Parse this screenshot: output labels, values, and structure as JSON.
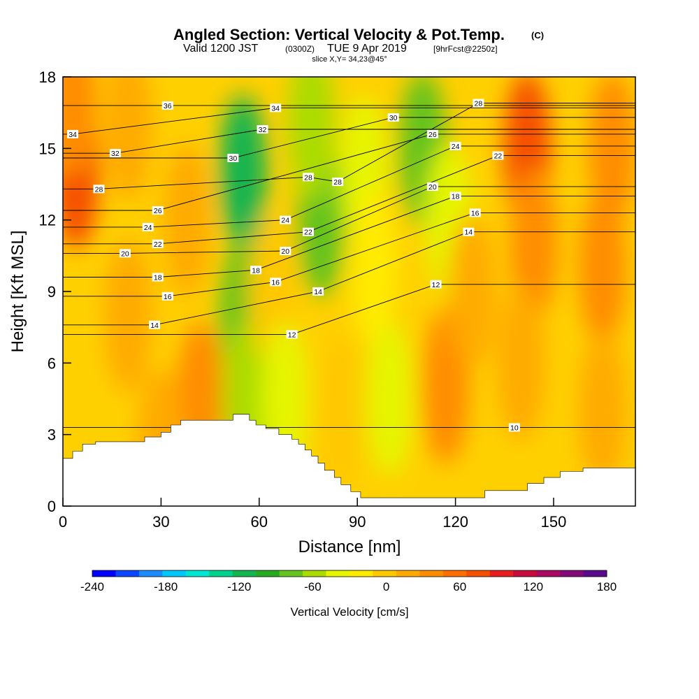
{
  "chart_data": {
    "type": "heatmap",
    "title_main": "Angled Section: Vertical Velocity & Pot.Temp.",
    "title_unit": "(C)",
    "subtitle_a": "Valid 1200 JST",
    "subtitle_b": "(0300Z)",
    "subtitle_c": "TUE 9 Apr 2019",
    "subtitle_d": "[9hrFcst@2250z]",
    "slice": "slice X,Y= 34,23@45°",
    "xlabel": "Distance [nm]",
    "ylabel": "Height [Kft MSL]",
    "xlim": [
      0,
      175
    ],
    "ylim": [
      0,
      18
    ],
    "x_ticks": [
      "0",
      "30",
      "60",
      "90",
      "120",
      "150"
    ],
    "x_tick_values": [
      0,
      30,
      60,
      90,
      120,
      150
    ],
    "y_ticks": [
      "0",
      "3",
      "6",
      "9",
      "12",
      "15",
      "18"
    ],
    "y_tick_values": [
      0,
      3,
      6,
      9,
      12,
      15,
      18
    ],
    "colorbar": {
      "label": "Vertical Velocity [cm/s]",
      "range": [
        -240,
        180
      ],
      "tick_labels": [
        "-240",
        "-180",
        "-120",
        "-60",
        "0",
        "60",
        "120",
        "180"
      ],
      "tick_values": [
        -240,
        -180,
        -120,
        -60,
        0,
        60,
        120,
        180
      ],
      "colors": [
        "#0000ff",
        "#0a46ff",
        "#1a8cff",
        "#00c8ff",
        "#00e6d2",
        "#00d28c",
        "#14b450",
        "#28aa1e",
        "#64c31e",
        "#aadc00",
        "#e6f500",
        "#ffeb00",
        "#ffc800",
        "#ffaa00",
        "#ff8c00",
        "#ff6e00",
        "#f55000",
        "#e61e1e",
        "#c80a3c",
        "#aa0a64",
        "#820a78",
        "#5a0a8c"
      ]
    },
    "terrain_profile": {
      "x": [
        0,
        3,
        3,
        6,
        6,
        10,
        10,
        25,
        25,
        30,
        30,
        33,
        33,
        36,
        36,
        52,
        52,
        57,
        57,
        59,
        59,
        62,
        62,
        66,
        66,
        70,
        70,
        72,
        72,
        74,
        74,
        76,
        76,
        78,
        78,
        80,
        80,
        83,
        83,
        85,
        85,
        88,
        88,
        91,
        91,
        129,
        129,
        142,
        142,
        147,
        147,
        152,
        152,
        159,
        159,
        175
      ],
      "height": [
        2,
        2,
        2.3,
        2.3,
        2.6,
        2.6,
        2.7,
        2.7,
        2.9,
        2.9,
        3.1,
        3.1,
        3.4,
        3.4,
        3.6,
        3.6,
        3.85,
        3.85,
        3.6,
        3.6,
        3.4,
        3.4,
        3.25,
        3.25,
        3.0,
        3.0,
        2.8,
        2.8,
        2.6,
        2.6,
        2.35,
        2.35,
        2.1,
        2.1,
        1.8,
        1.8,
        1.5,
        1.5,
        1.2,
        1.2,
        0.9,
        0.9,
        0.6,
        0.6,
        0.35,
        0.35,
        0.65,
        0.65,
        0.95,
        0.95,
        1.2,
        1.2,
        1.45,
        1.45,
        1.6,
        1.6
      ]
    },
    "velocity_field": [
      {
        "x": 4,
        "z": 14,
        "w": 70
      },
      {
        "x": 3,
        "z": 17,
        "w": 45
      },
      {
        "x": 20,
        "z": 8,
        "w": 25
      },
      {
        "x": 38,
        "z": 12,
        "w": 10
      },
      {
        "x": 42,
        "z": 4.5,
        "w": 35
      },
      {
        "x": 55,
        "z": 14,
        "w": -110
      },
      {
        "x": 55,
        "z": 8,
        "w": -70
      },
      {
        "x": 56,
        "z": 4.5,
        "w": -50
      },
      {
        "x": 64,
        "z": 9,
        "w": 5
      },
      {
        "x": 68,
        "z": 4.5,
        "w": -40
      },
      {
        "x": 79,
        "z": 12,
        "w": -70
      },
      {
        "x": 76,
        "z": 16,
        "w": -50
      },
      {
        "x": 92,
        "z": 14,
        "w": -45
      },
      {
        "x": 95,
        "z": 10,
        "w": -30
      },
      {
        "x": 100,
        "z": 4.5,
        "w": -45
      },
      {
        "x": 110,
        "z": 15,
        "w": -75
      },
      {
        "x": 118,
        "z": 12,
        "w": -40
      },
      {
        "x": 117,
        "z": 5,
        "w": 35
      },
      {
        "x": 85,
        "z": 4,
        "w": -8
      },
      {
        "x": 125,
        "z": 9,
        "w": 10
      },
      {
        "x": 142,
        "z": 15,
        "w": 80
      },
      {
        "x": 144,
        "z": 11,
        "w": 45
      },
      {
        "x": 140,
        "z": 6,
        "w": 20
      },
      {
        "x": 165,
        "z": 10,
        "w": 30
      },
      {
        "x": 165,
        "z": 4,
        "w": 15
      },
      {
        "x": 168,
        "z": 15,
        "w": 30
      },
      {
        "x": 20,
        "z": 16,
        "w": 20
      },
      {
        "x": 30,
        "z": 2.5,
        "w": 15
      }
    ],
    "potential_temperature_labels": [
      {
        "text": "36",
        "x": 32,
        "z": 16.8
      },
      {
        "text": "34",
        "x": 3,
        "z": 15.6
      },
      {
        "text": "32",
        "x": 16,
        "z": 14.8
      },
      {
        "text": "28",
        "x": 11,
        "z": 13.3
      },
      {
        "text": "26",
        "x": 29,
        "z": 12.4
      },
      {
        "text": "24",
        "x": 26,
        "z": 11.7
      },
      {
        "text": "22",
        "x": 29,
        "z": 11.0
      },
      {
        "text": "20",
        "x": 19,
        "z": 10.6
      },
      {
        "text": "18",
        "x": 29,
        "z": 9.6
      },
      {
        "text": "16",
        "x": 32,
        "z": 8.8
      },
      {
        "text": "14",
        "x": 28,
        "z": 7.6
      },
      {
        "text": "34",
        "x": 65,
        "z": 16.7
      },
      {
        "text": "32",
        "x": 61,
        "z": 15.8
      },
      {
        "text": "30",
        "x": 52,
        "z": 14.6
      },
      {
        "text": "28",
        "x": 75,
        "z": 13.8
      },
      {
        "text": "28",
        "x": 84,
        "z": 13.6
      },
      {
        "text": "24",
        "x": 68,
        "z": 12.0
      },
      {
        "text": "22",
        "x": 75,
        "z": 11.5
      },
      {
        "text": "20",
        "x": 68,
        "z": 10.7
      },
      {
        "text": "18",
        "x": 59,
        "z": 9.9
      },
      {
        "text": "16",
        "x": 65,
        "z": 9.4
      },
      {
        "text": "14",
        "x": 78,
        "z": 9.0
      },
      {
        "text": "12",
        "x": 70,
        "z": 7.2
      },
      {
        "text": "30",
        "x": 101,
        "z": 16.3
      },
      {
        "text": "28",
        "x": 127,
        "z": 16.9
      },
      {
        "text": "26",
        "x": 113,
        "z": 15.6
      },
      {
        "text": "24",
        "x": 120,
        "z": 15.1
      },
      {
        "text": "22",
        "x": 133,
        "z": 14.7
      },
      {
        "text": "20",
        "x": 113,
        "z": 13.4
      },
      {
        "text": "18",
        "x": 120,
        "z": 13.0
      },
      {
        "text": "16",
        "x": 126,
        "z": 12.3
      },
      {
        "text": "14",
        "x": 124,
        "z": 11.5
      },
      {
        "text": "12",
        "x": 114,
        "z": 9.3
      },
      {
        "text": "10",
        "x": 138,
        "z": 3.3
      }
    ]
  }
}
